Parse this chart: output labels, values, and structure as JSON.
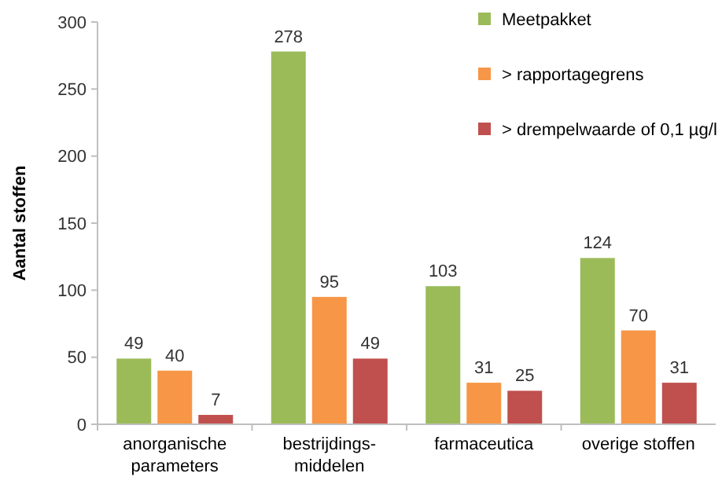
{
  "chart_data": {
    "type": "bar",
    "ylabel": "Aantal stoffen",
    "categories": [
      "anorganische\nparameters",
      "bestrijdings-\nmiddelen",
      "farmaceutica",
      "overige stoffen"
    ],
    "series": [
      {
        "name": "Meetpakket",
        "color": "#9bbb59",
        "values": [
          49,
          278,
          103,
          124
        ]
      },
      {
        "name": "> rapportagegrens",
        "color": "#f79646",
        "values": [
          40,
          95,
          31,
          70
        ]
      },
      {
        "name": "> drempelwaarde of 0,1 µg/l",
        "color": "#c0504d",
        "values": [
          7,
          49,
          25,
          31
        ]
      }
    ],
    "ylim": [
      0,
      300
    ],
    "yticks": [
      0,
      50,
      100,
      150,
      200,
      250,
      300
    ],
    "data_labels": true,
    "legend": "top right",
    "grid": false
  }
}
